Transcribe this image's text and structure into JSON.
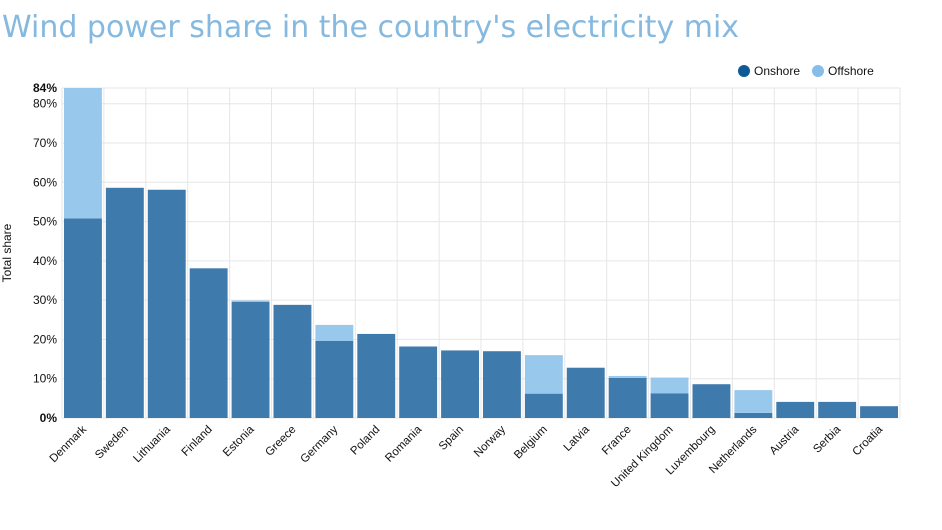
{
  "page": {
    "title": "Wind power share in the country's electricity mix"
  },
  "legend": [
    {
      "name": "Onshore",
      "color": "#0f5a96"
    },
    {
      "name": "Offshore",
      "color": "#86bde9"
    }
  ],
  "colors": {
    "onshore_bar": "#3f7aad",
    "offshore_bar": "#98c9ec",
    "grid": "#e6e6e6",
    "title": "#86b9df"
  },
  "chart_data": {
    "type": "bar",
    "stacked": true,
    "title": "Wind power share in the country's electricity mix",
    "xlabel": "",
    "ylabel": "Total share",
    "ylim": [
      0,
      84
    ],
    "y_ticks": [
      {
        "value": 0,
        "label": "0%"
      },
      {
        "value": 10,
        "label": "10%"
      },
      {
        "value": 20,
        "label": "20%"
      },
      {
        "value": 30,
        "label": "30%"
      },
      {
        "value": 40,
        "label": "40%"
      },
      {
        "value": 50,
        "label": "50%"
      },
      {
        "value": 60,
        "label": "60%"
      },
      {
        "value": 70,
        "label": "70%"
      },
      {
        "value": 80,
        "label": "80%"
      },
      {
        "value": 84,
        "label": "84%"
      }
    ],
    "grid": true,
    "legend_position": "top-right",
    "categories": [
      "Denmark",
      "Sweden",
      "Lithuania",
      "Finland",
      "Estonia",
      "Greece",
      "Germany",
      "Poland",
      "Romania",
      "Spain",
      "Norway",
      "Belgium",
      "Latvia",
      "France",
      "United Kingdom",
      "Luxembourg",
      "Netherlands",
      "Austria",
      "Serbia",
      "Croatia"
    ],
    "series": [
      {
        "name": "Onshore",
        "values": [
          50.8,
          58.6,
          58.1,
          38.1,
          29.6,
          28.8,
          19.6,
          21.4,
          18.2,
          17.2,
          17.0,
          6.2,
          12.8,
          10.2,
          6.3,
          8.6,
          1.3,
          4.1,
          4.1,
          3.0
        ]
      },
      {
        "name": "Offshore",
        "values": [
          33.2,
          0,
          0,
          0,
          0.3,
          0,
          4.1,
          0,
          0,
          0,
          0,
          9.8,
          0,
          0.5,
          4.0,
          0,
          5.8,
          0,
          0,
          0
        ]
      }
    ]
  }
}
